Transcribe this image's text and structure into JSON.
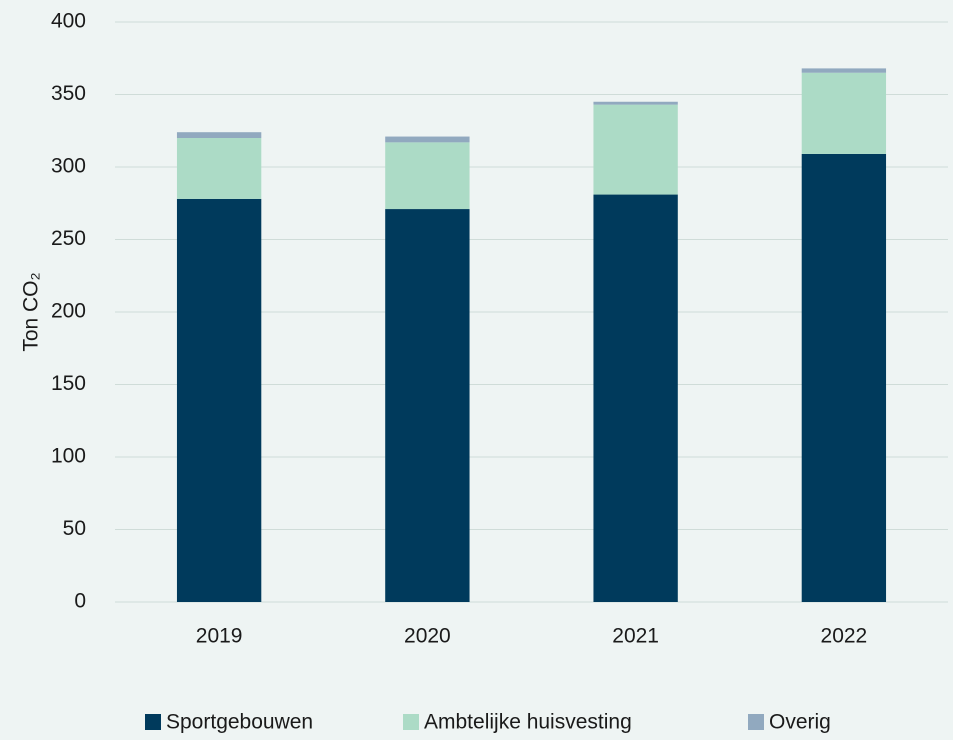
{
  "chart_data": {
    "type": "stacked_bar",
    "y_label": "Ton CO₂",
    "categories": [
      "2019",
      "2020",
      "2021",
      "2022"
    ],
    "series": [
      {
        "name": "Sportgebouwen",
        "color": "#003a5c",
        "values": [
          278,
          271,
          281,
          309
        ]
      },
      {
        "name": "Ambtelijke huisvesting",
        "color": "#acdbc6",
        "values": [
          42,
          46,
          62,
          56
        ]
      },
      {
        "name": "Overig",
        "color": "#91a9bf",
        "values": [
          4,
          4,
          2,
          3
        ]
      }
    ],
    "ylim": [
      0,
      400
    ],
    "yticks": [
      0,
      50,
      100,
      150,
      200,
      250,
      300,
      350,
      400
    ],
    "grid": true
  }
}
